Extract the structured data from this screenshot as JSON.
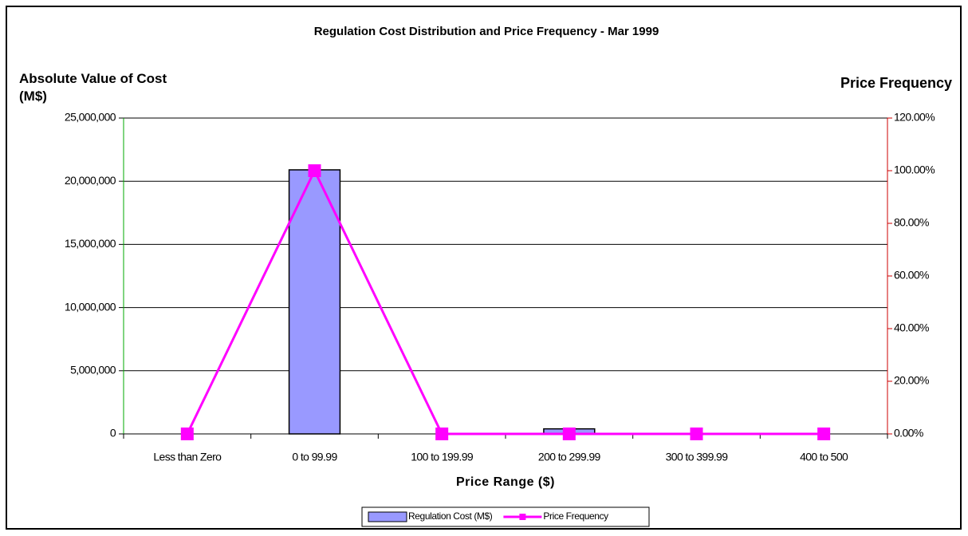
{
  "chart_data": {
    "type": "bar",
    "title": "Regulation Cost Distribution and Price Frequency - Mar 1999",
    "y_label": "Absolute Value of Cost (M$)",
    "y2_label": "Price Frequency",
    "x_label": "Price Range ($)",
    "categories": [
      "Less than Zero",
      "0 to 99.99",
      "100 to 199.99",
      "200 to 299.99",
      "300 to 399.99",
      "400 to 500"
    ],
    "series": [
      {
        "name": "Regulation Cost (M$)",
        "color": "#9999ff",
        "type": "bar",
        "values": [
          0,
          20900000,
          0,
          400000,
          0,
          0
        ]
      },
      {
        "name": "Price Frequency",
        "color": "#ff00ff",
        "type": "line",
        "axis": "y2",
        "values": [
          0,
          100,
          0,
          0,
          0,
          0
        ]
      }
    ],
    "ylim": [
      0,
      25000000
    ],
    "yticks": [
      0,
      {
        "value": 5000000,
        "label": "5,000,000"
      },
      {
        "value": 10000000,
        "label": "10,000,000"
      },
      {
        "value": 15000000,
        "label": "15,000,000"
      },
      {
        "value": 20000000,
        "label": "20,000,000"
      },
      {
        "value": 25000000,
        "label": "25,000,000"
      }
    ],
    "y2lim": [
      0,
      120
    ],
    "y2ticks": [
      {
        "value": 0,
        "label": "0.00%"
      },
      {
        "value": 20,
        "label": "20.00%"
      },
      {
        "value": 40,
        "label": "40.00%"
      },
      {
        "value": 60,
        "label": "60.00%"
      },
      {
        "value": 80,
        "label": "80.00%"
      },
      {
        "value": 100,
        "label": "100.00%"
      },
      {
        "value": 120,
        "label": "120.00%"
      }
    ],
    "grid": true,
    "legend": "bottom"
  }
}
